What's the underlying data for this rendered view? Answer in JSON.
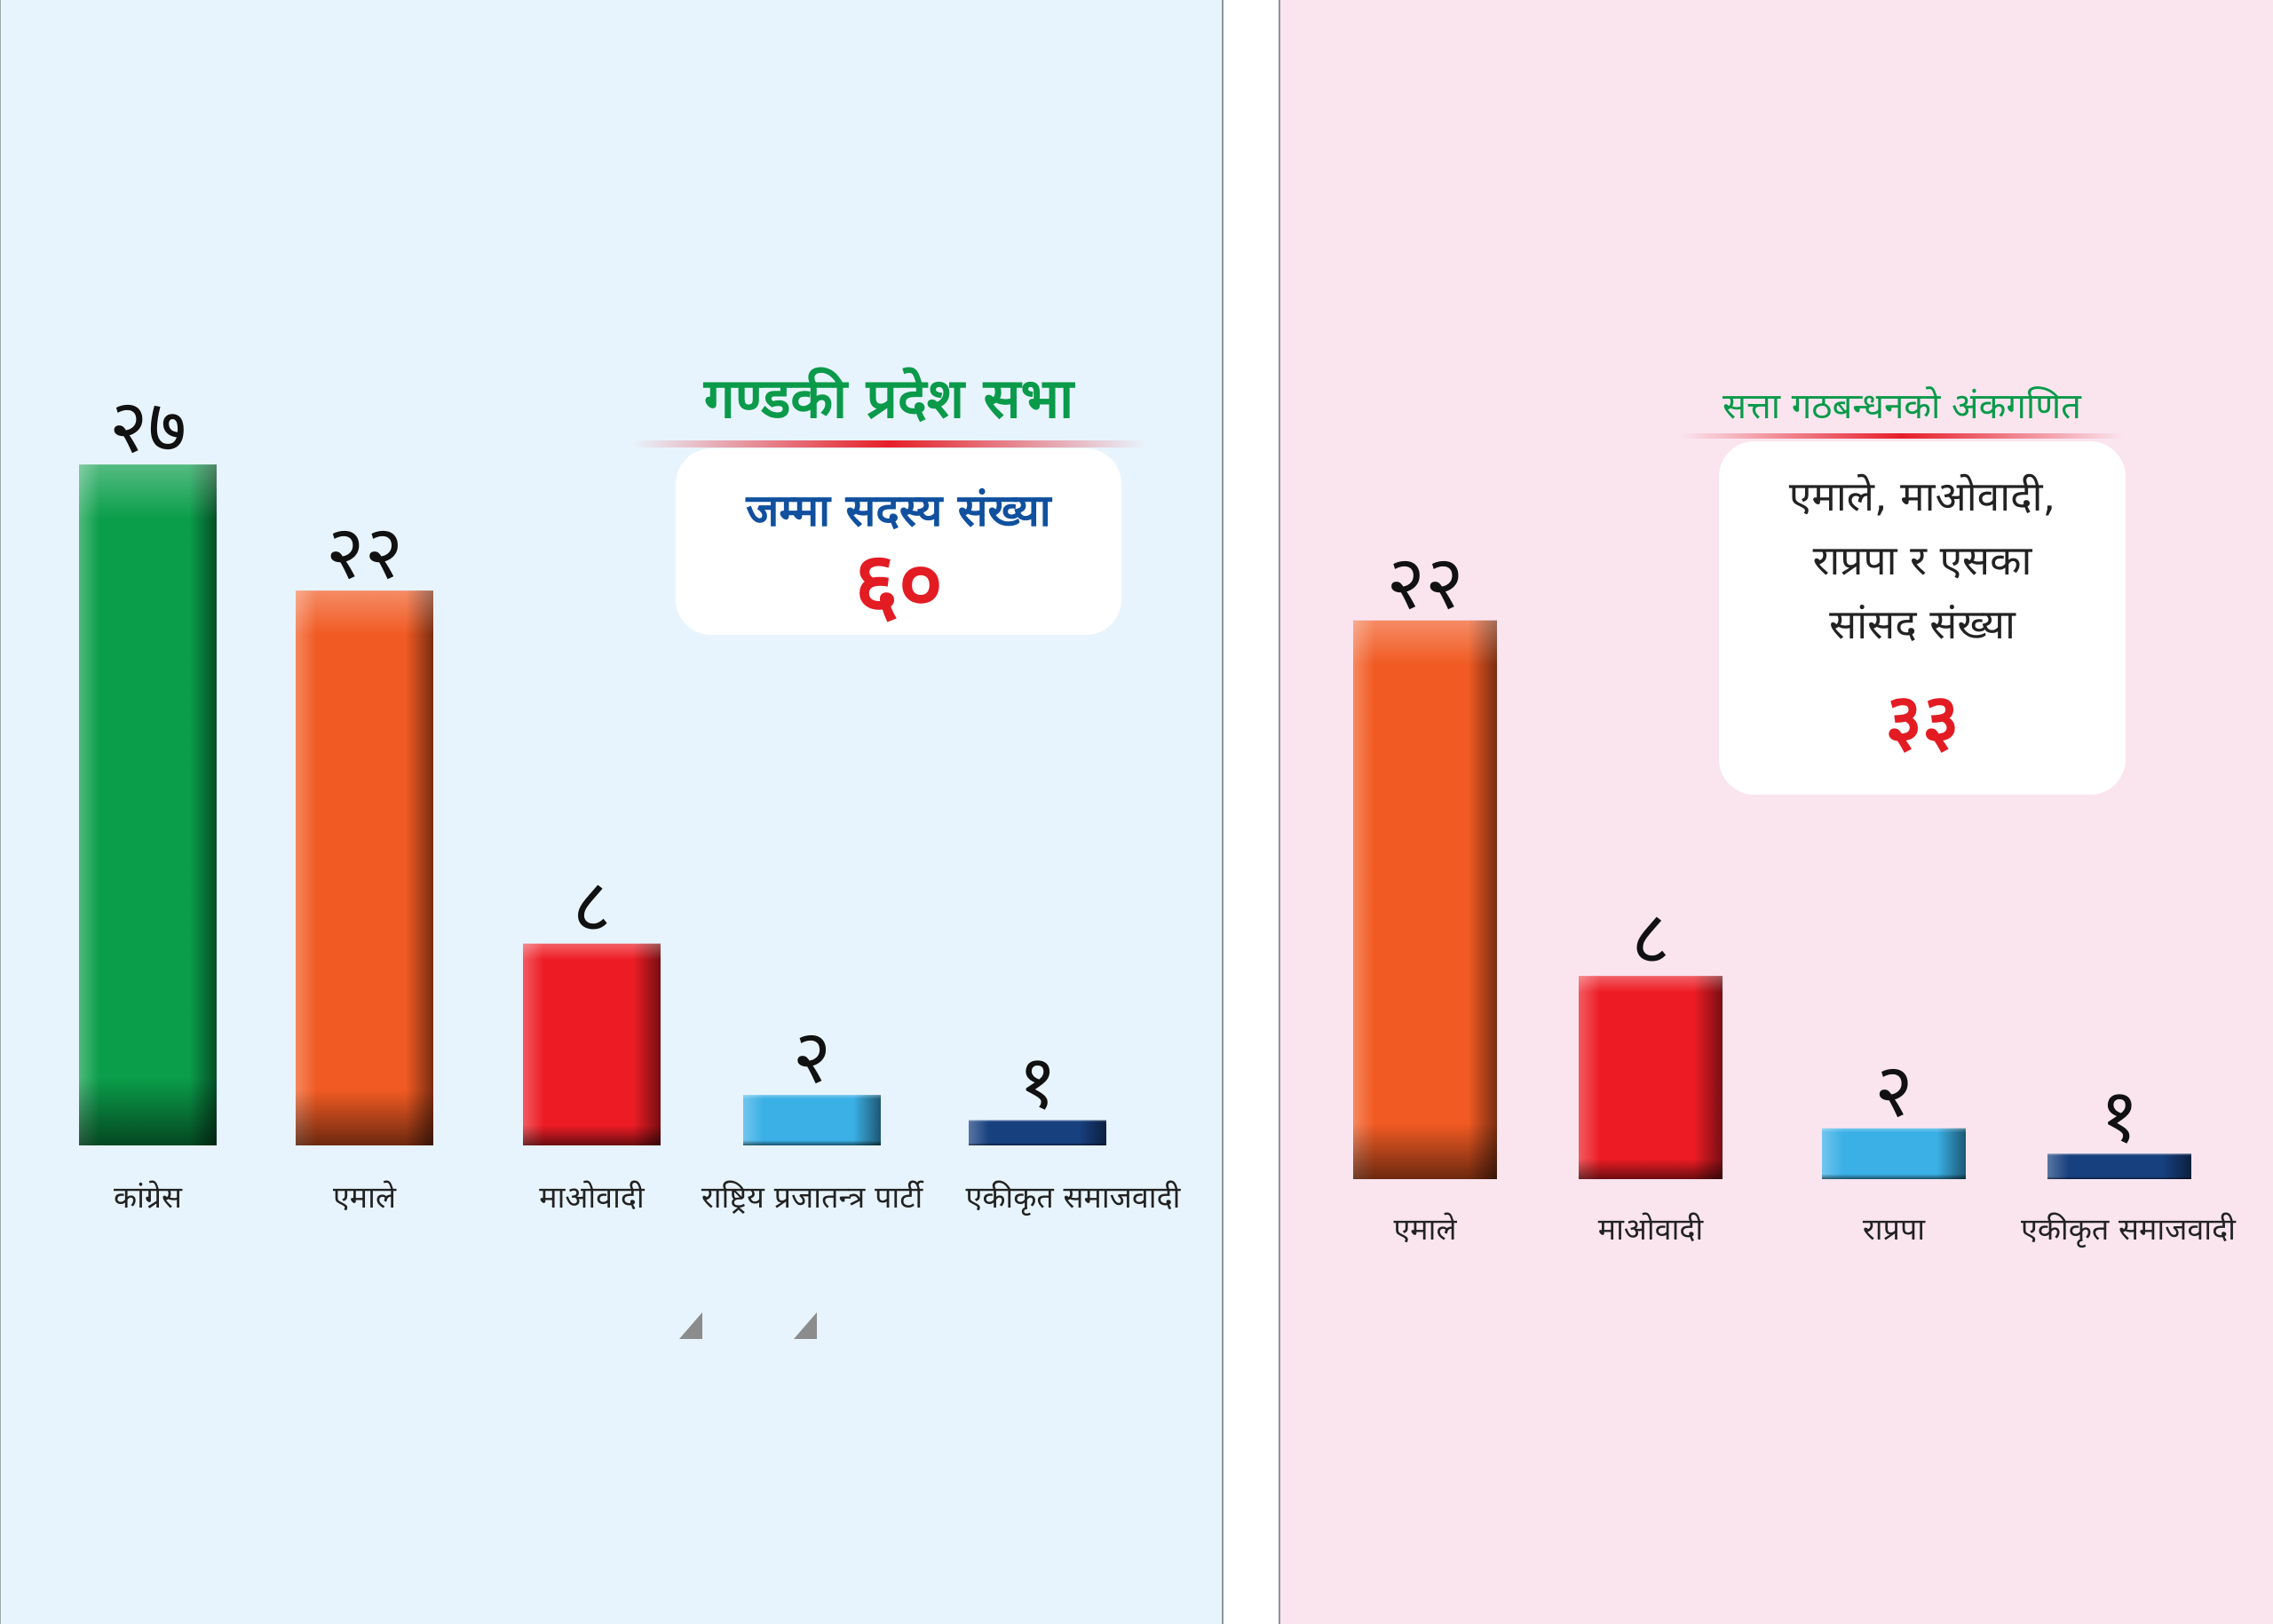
{
  "left": {
    "title": "गण्डकी प्रदेश सभा",
    "box": {
      "label": "जम्मा सदस्य संख्या",
      "value": "६०"
    }
  },
  "right": {
    "title": "सत्ता गठबन्धनको अंकगणित",
    "box": {
      "lines": [
        "एमाले, माओवादी,",
        "राप्रपा र एसका",
        "सांसद संख्या"
      ],
      "value": "३३"
    }
  },
  "chart_data": [
    {
      "type": "bar",
      "categories": [
        "कांग्रेस",
        "एमाले",
        "माओवादी",
        "राष्ट्रिय प्रजातन्त्र पार्टी",
        "एकीकृत समाजवादी"
      ],
      "values": [
        27,
        22,
        8,
        2,
        1
      ],
      "value_labels": [
        "२७",
        "२२",
        "८",
        "२",
        "१"
      ],
      "colors": [
        "#0a9e4a",
        "#f15a22",
        "#ed1c24",
        "#3ab0e6",
        "#17407f"
      ],
      "title": "गण्डकी प्रदेश सभा"
    },
    {
      "type": "bar",
      "categories": [
        "एमाले",
        "माओवादी",
        "राप्रपा",
        "एकीकृत समाजवादी"
      ],
      "values": [
        22,
        8,
        2,
        1
      ],
      "value_labels": [
        "२२",
        "८",
        "२",
        "१"
      ],
      "colors": [
        "#f15a22",
        "#ed1c24",
        "#3ab0e6",
        "#17407f"
      ],
      "title": "सत्ता गठबन्धनको अंकगणित"
    }
  ]
}
